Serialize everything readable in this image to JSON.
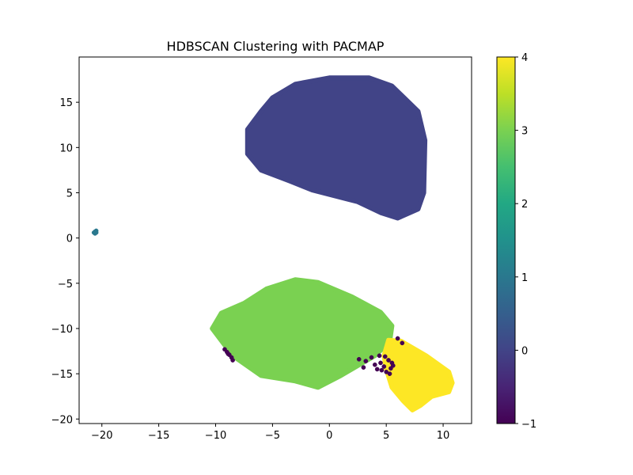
{
  "chart_data": {
    "type": "scatter",
    "title": "HDBSCAN Clustering with PACMAP",
    "xlabel": "",
    "ylabel": "",
    "xlim": [
      -22,
      12.5
    ],
    "ylim": [
      -20.5,
      20
    ],
    "xticks": [
      -20,
      -15,
      -10,
      -5,
      0,
      5,
      10
    ],
    "yticks": [
      -20,
      -15,
      -10,
      -5,
      0,
      5,
      10,
      15
    ],
    "grid": false,
    "colorbar": {
      "label": "",
      "range": [
        -1,
        4
      ],
      "ticks": [
        -1,
        0,
        1,
        2,
        3,
        4
      ],
      "colormap": "viridis"
    },
    "clusters": [
      {
        "label": 0,
        "color": "#414487",
        "outline": [
          [
            0,
            17.7
          ],
          [
            3.5,
            17.7
          ],
          [
            5.5,
            16.8
          ],
          [
            7.8,
            14.0
          ],
          [
            8.4,
            10.8
          ],
          [
            8.3,
            5.0
          ],
          [
            7.8,
            3.2
          ],
          [
            6.0,
            2.2
          ],
          [
            4.5,
            2.8
          ],
          [
            2.5,
            4.0
          ],
          [
            -1.5,
            5.3
          ],
          [
            -3.5,
            6.3
          ],
          [
            -6.0,
            7.5
          ],
          [
            -7.2,
            9.3
          ],
          [
            -7.2,
            12.0
          ],
          [
            -6.0,
            14.0
          ],
          [
            -5.0,
            15.5
          ],
          [
            -3.0,
            17.0
          ]
        ]
      },
      {
        "label": 3,
        "color": "#7ad151",
        "outline": [
          [
            -3.0,
            -4.6
          ],
          [
            -1.0,
            -4.9
          ],
          [
            2.0,
            -6.5
          ],
          [
            4.5,
            -8.2
          ],
          [
            5.5,
            -9.7
          ],
          [
            5.3,
            -11.5
          ],
          [
            4.0,
            -13.0
          ],
          [
            1.0,
            -15.2
          ],
          [
            -1.0,
            -16.5
          ],
          [
            -3.0,
            -15.8
          ],
          [
            -6.0,
            -15.2
          ],
          [
            -8.5,
            -13.0
          ],
          [
            -10.3,
            -10.0
          ],
          [
            -9.5,
            -8.3
          ],
          [
            -7.5,
            -7.2
          ],
          [
            -5.5,
            -5.6
          ]
        ]
      },
      {
        "label": 4,
        "color": "#fde725",
        "outline": [
          [
            5.2,
            -11.3
          ],
          [
            6.3,
            -11.4
          ],
          [
            8.5,
            -13.0
          ],
          [
            10.5,
            -14.8
          ],
          [
            10.8,
            -16.0
          ],
          [
            10.5,
            -17.0
          ],
          [
            9.0,
            -17.5
          ],
          [
            8.0,
            -18.5
          ],
          [
            7.3,
            -19.0
          ],
          [
            6.5,
            -18.0
          ],
          [
            5.5,
            -16.5
          ],
          [
            5.0,
            -14.5
          ],
          [
            4.8,
            -13.0
          ]
        ]
      },
      {
        "label": 1,
        "color": "#2a788e",
        "points": [
          [
            -20.6,
            0.7
          ],
          [
            -20.5,
            0.6
          ],
          [
            -20.7,
            0.6
          ],
          [
            -20.5,
            0.8
          ],
          [
            -20.6,
            0.5
          ]
        ]
      },
      {
        "label": -1,
        "color": "#440154",
        "points": [
          [
            -9.2,
            -12.3
          ],
          [
            -9.0,
            -12.6
          ],
          [
            -8.8,
            -12.9
          ],
          [
            -8.6,
            -13.2
          ],
          [
            -8.5,
            -13.5
          ],
          [
            -8.9,
            -12.8
          ],
          [
            3.0,
            -14.3
          ],
          [
            3.2,
            -13.6
          ],
          [
            3.7,
            -13.2
          ],
          [
            4.0,
            -14.0
          ],
          [
            4.2,
            -14.5
          ],
          [
            4.5,
            -13.8
          ],
          [
            4.6,
            -14.6
          ],
          [
            4.8,
            -14.2
          ],
          [
            5.0,
            -14.8
          ],
          [
            5.2,
            -13.5
          ],
          [
            5.4,
            -14.4
          ],
          [
            5.5,
            -13.8
          ],
          [
            5.6,
            -14.1
          ],
          [
            4.9,
            -13.1
          ],
          [
            4.4,
            -13.0
          ],
          [
            6.0,
            -11.1
          ],
          [
            6.4,
            -11.6
          ],
          [
            2.6,
            -13.4
          ],
          [
            5.3,
            -15.0
          ]
        ]
      }
    ]
  }
}
